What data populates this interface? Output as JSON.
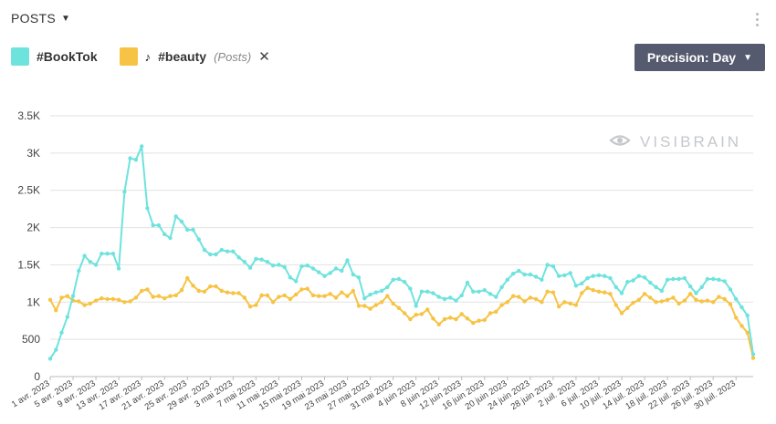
{
  "header": {
    "title": "POSTS"
  },
  "legend": {
    "items": [
      {
        "name": "#BookTok",
        "color": "#6ee3dd"
      },
      {
        "name": "#beauty",
        "note": "(Posts)",
        "color": "#f7c344"
      }
    ]
  },
  "controls": {
    "precision_label": "Precision: Day"
  },
  "watermark": "VISIBRAIN",
  "chart_data": {
    "type": "line",
    "title": "",
    "xlabel": "",
    "ylabel": "",
    "ylim": [
      0,
      3500
    ],
    "yticks": [
      0,
      500,
      1000,
      1500,
      2000,
      2500,
      3000,
      3500
    ],
    "ytick_labels": [
      "0",
      "500",
      "1K",
      "1.5K",
      "2K",
      "2.5K",
      "3K",
      "3.5K"
    ],
    "x_start": "1 avr. 2023",
    "x_end": "31 juil. 2023",
    "xtick_labels": [
      "1 avr. 2023",
      "5 avr. 2023",
      "9 avr. 2023",
      "13 avr. 2023",
      "17 avr. 2023",
      "21 avr. 2023",
      "25 avr. 2023",
      "29 avr. 2023",
      "3 mai 2023",
      "7 mai 2023",
      "11 mai 2023",
      "15 mai 2023",
      "19 mai 2023",
      "23 mai 2023",
      "27 mai 2023",
      "31 mai 2023",
      "4 juin 2023",
      "8 juin 2023",
      "12 juin 2023",
      "16 juin 2023",
      "20 juin 2023",
      "24 juin 2023",
      "28 juin 2023",
      "2 juil. 2023",
      "6 juil. 2023",
      "10 juil. 2023",
      "14 juil. 2023",
      "18 juil. 2023",
      "22 juil. 2023",
      "26 juil. 2023",
      "30 juil. 2023"
    ],
    "grid": true,
    "legend_position": "top-left",
    "series": [
      {
        "name": "#BookTok",
        "color": "#6ee3dd",
        "values": [
          240,
          360,
          590,
          800,
          1080,
          1420,
          1620,
          1540,
          1500,
          1650,
          1650,
          1650,
          1450,
          2480,
          2930,
          2910,
          3090,
          2260,
          2030,
          2030,
          1910,
          1860,
          2150,
          2080,
          1970,
          1970,
          1840,
          1700,
          1640,
          1640,
          1700,
          1680,
          1680,
          1600,
          1540,
          1460,
          1580,
          1570,
          1540,
          1490,
          1500,
          1470,
          1330,
          1280,
          1480,
          1490,
          1450,
          1400,
          1350,
          1390,
          1450,
          1420,
          1560,
          1370,
          1330,
          1050,
          1100,
          1130,
          1150,
          1200,
          1300,
          1310,
          1270,
          1180,
          950,
          1140,
          1140,
          1120,
          1070,
          1040,
          1060,
          1020,
          1090,
          1260,
          1140,
          1140,
          1160,
          1110,
          1070,
          1200,
          1300,
          1380,
          1420,
          1370,
          1370,
          1340,
          1300,
          1500,
          1480,
          1350,
          1360,
          1390,
          1220,
          1250,
          1320,
          1350,
          1360,
          1350,
          1320,
          1200,
          1120,
          1270,
          1290,
          1350,
          1330,
          1260,
          1200,
          1150,
          1300,
          1310,
          1310,
          1320,
          1210,
          1120,
          1200,
          1310,
          1310,
          1300,
          1280,
          1170,
          1040,
          930,
          820,
          300
        ]
      },
      {
        "name": "#beauty",
        "color": "#f7c344",
        "values": [
          1030,
          890,
          1060,
          1080,
          1020,
          1010,
          960,
          980,
          1020,
          1050,
          1040,
          1040,
          1030,
          1000,
          1010,
          1060,
          1150,
          1170,
          1070,
          1080,
          1050,
          1080,
          1090,
          1160,
          1320,
          1220,
          1150,
          1140,
          1210,
          1210,
          1150,
          1130,
          1120,
          1120,
          1060,
          940,
          960,
          1090,
          1090,
          1000,
          1070,
          1090,
          1040,
          1100,
          1170,
          1180,
          1090,
          1080,
          1080,
          1110,
          1060,
          1130,
          1080,
          1150,
          950,
          950,
          910,
          960,
          1000,
          1080,
          980,
          920,
          850,
          770,
          830,
          840,
          900,
          780,
          700,
          770,
          790,
          770,
          840,
          780,
          720,
          750,
          760,
          850,
          870,
          960,
          1000,
          1080,
          1070,
          1010,
          1060,
          1040,
          1000,
          1140,
          1130,
          940,
          1000,
          980,
          960,
          1120,
          1190,
          1160,
          1140,
          1130,
          1110,
          960,
          850,
          920,
          990,
          1030,
          1110,
          1060,
          1000,
          1010,
          1030,
          1060,
          980,
          1020,
          1110,
          1030,
          1010,
          1020,
          1000,
          1070,
          1040,
          970,
          790,
          680,
          590,
          250
        ]
      }
    ]
  }
}
